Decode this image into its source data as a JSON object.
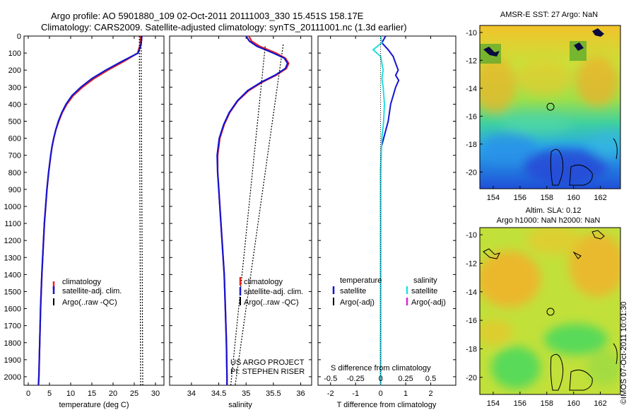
{
  "header": {
    "title_line1": "Argo profile: AO 5901880_109 02-Oct-2011 20111003_330 15.451S 158.17E",
    "title_line2": "Climatology: CARS2009. Satellite-adjusted climatology: synTS_20111001.nc (1.3d earlier)"
  },
  "stamp": "©IMOS 07-Oct-2011 10:01:30",
  "colors": {
    "climatology": "#e8231e",
    "satellite": "#1515d0",
    "argo": "#000000",
    "satellite_salt": "#22e0e0",
    "argo_salt": "#e020e0"
  },
  "depth_axis": {
    "ylim": [
      0,
      2050
    ],
    "ticks": [
      0,
      100,
      200,
      300,
      400,
      500,
      600,
      700,
      800,
      900,
      1000,
      1100,
      1200,
      1300,
      1400,
      1500,
      1600,
      1700,
      1800,
      1900,
      2000
    ]
  },
  "chart_data": [
    {
      "type": "line",
      "id": "temperature",
      "xlabel": "temperature (deg C)",
      "xlim": [
        -1,
        32
      ],
      "xticks": [
        0,
        5,
        10,
        15,
        20,
        25,
        30
      ],
      "legend": {
        "position": "lower-center",
        "entries": [
          "climatology",
          "satellite-adj. clim.",
          "Argo(..raw -QC)"
        ]
      },
      "series": [
        {
          "name": "climatology",
          "depth": [
            0,
            50,
            100,
            150,
            200,
            250,
            300,
            350,
            400,
            450,
            500,
            550,
            600,
            650,
            700,
            800,
            900,
            1000,
            1100,
            1200,
            1400,
            1600,
            1800,
            2000,
            2050
          ],
          "values": [
            26.5,
            26.4,
            25.8,
            22.5,
            18.8,
            15.5,
            12.8,
            10.6,
            9.1,
            8.0,
            7.2,
            6.5,
            6.0,
            5.6,
            5.3,
            4.8,
            4.4,
            4.1,
            3.8,
            3.6,
            3.2,
            2.9,
            2.7,
            2.5,
            2.4
          ]
        },
        {
          "name": "satellite",
          "depth": [
            0,
            50,
            100,
            150,
            200,
            250,
            300,
            350,
            400,
            450,
            500,
            550,
            600,
            650,
            700,
            800,
            900,
            1000,
            1100,
            1200,
            1400,
            1600,
            1800,
            2000,
            2050
          ],
          "values": [
            26.8,
            26.6,
            25.9,
            22.0,
            18.3,
            15.0,
            12.4,
            10.3,
            8.9,
            7.9,
            7.1,
            6.5,
            6.0,
            5.6,
            5.3,
            4.8,
            4.4,
            4.1,
            3.8,
            3.6,
            3.2,
            2.9,
            2.7,
            2.5,
            2.4
          ]
        },
        {
          "name": "argo_upper",
          "depth": [
            0,
            2050
          ],
          "values": [
            26.6,
            27.0
          ]
        },
        {
          "name": "argo_lower",
          "depth": [
            0,
            2050
          ],
          "values": [
            26.2,
            26.5
          ]
        }
      ]
    },
    {
      "type": "line",
      "id": "salinity",
      "xlabel": "salinity",
      "xlim": [
        33.6,
        36.2
      ],
      "xticks": [
        34,
        34.5,
        35,
        35.5,
        36
      ],
      "legend": {
        "position": "lower-right",
        "entries": [
          "climatology",
          "satellite-adj. clim.",
          "Argo(..raw -QC)"
        ]
      },
      "annotations": [
        "US ARGO PROJECT",
        "PI: STEPHEN RISER"
      ],
      "series": [
        {
          "name": "climatology",
          "depth": [
            0,
            30,
            60,
            100,
            130,
            160,
            190,
            230,
            270,
            320,
            380,
            450,
            520,
            600,
            700,
            800,
            900,
            1000,
            1200,
            1400,
            1600,
            1800,
            2000,
            2050
          ],
          "values": [
            35.05,
            35.1,
            35.25,
            35.55,
            35.72,
            35.78,
            35.74,
            35.55,
            35.3,
            35.05,
            34.85,
            34.7,
            34.6,
            34.52,
            34.48,
            34.48,
            34.5,
            34.52,
            34.56,
            34.6,
            34.62,
            34.64,
            34.65,
            34.65
          ]
        },
        {
          "name": "satellite",
          "depth": [
            0,
            30,
            60,
            100,
            130,
            160,
            190,
            230,
            270,
            320,
            380,
            450,
            520,
            600,
            700,
            800,
            900,
            1000,
            1200,
            1400,
            1600,
            1800,
            2000,
            2050
          ],
          "values": [
            35.0,
            35.06,
            35.2,
            35.5,
            35.7,
            35.76,
            35.72,
            35.53,
            35.28,
            35.03,
            34.84,
            34.69,
            34.59,
            34.51,
            34.47,
            34.48,
            34.5,
            34.52,
            34.56,
            34.6,
            34.62,
            34.64,
            34.65,
            34.65
          ]
        },
        {
          "name": "argo_a",
          "depth": [
            60,
            2050
          ],
          "values": [
            35.35,
            34.72
          ]
        },
        {
          "name": "argo_b",
          "depth": [
            50,
            2050
          ],
          "values": [
            35.68,
            34.8
          ]
        }
      ]
    },
    {
      "type": "line",
      "id": "difference",
      "xlabel": "T difference from climatology",
      "xlabel_top": "S difference from climatology",
      "xlim": [
        -2.5,
        3
      ],
      "xticks": [
        -2,
        -1,
        0,
        1,
        2
      ],
      "xticks_top": [
        "-0.5",
        "-0.25",
        "0",
        "0.25",
        "0.5"
      ],
      "legend": {
        "position": "lower-center",
        "headers": [
          "temperature",
          "salinity"
        ],
        "entries": [
          "satellite",
          "Argo(-adj)",
          "satellite",
          "Argo(-adj)"
        ]
      },
      "series": [
        {
          "name": "temperature satellite",
          "depth": [
            0,
            40,
            80,
            120,
            160,
            200,
            230,
            260,
            300,
            350,
            400,
            500,
            600,
            650,
            700,
            800,
            1000,
            1500,
            2050
          ],
          "values": [
            0.2,
            0.05,
            0.3,
            0.5,
            0.6,
            0.7,
            0.6,
            0.72,
            0.6,
            0.5,
            0.4,
            0.3,
            0.12,
            0.03,
            0.02,
            0.0,
            0.0,
            0.0,
            0.0
          ]
        },
        {
          "name": "salinity satellite",
          "depth": [
            0,
            40,
            80,
            120,
            160,
            200,
            250,
            300,
            400,
            500,
            600,
            700,
            800,
            1000,
            1500,
            2050
          ],
          "values": [
            0.0,
            0.05,
            -0.3,
            0.0,
            0.05,
            0.1,
            0.05,
            0.1,
            0.15,
            0.12,
            0.05,
            0.02,
            0.0,
            0.0,
            0.0,
            0.0
          ]
        },
        {
          "name": "zero reference",
          "depth": [
            0,
            2050
          ],
          "values": [
            0,
            0
          ]
        }
      ]
    },
    {
      "type": "heatmap",
      "id": "sst-map",
      "title": "AMSR-E SST: 27 Argo: NaN",
      "xticks": [
        "154",
        "156",
        "158",
        "160",
        "162"
      ],
      "yticks": [
        "-10",
        "-12",
        "-14",
        "-16",
        "-18",
        "-20"
      ],
      "xlim": [
        153,
        163.5
      ],
      "ylim": [
        -21.2,
        -9.5
      ],
      "marker": {
        "lon": 158.17,
        "lat": -15.45
      }
    },
    {
      "type": "heatmap",
      "id": "sla-map",
      "title_line1": "Altim. SLA: 0.12",
      "title_line2": "Argo h1000: NaN h2000: NaN",
      "xticks": [
        "154",
        "156",
        "158",
        "160",
        "162"
      ],
      "yticks": [
        "-10",
        "-12",
        "-14",
        "-16",
        "-18",
        "-20"
      ],
      "xlim": [
        153,
        163.5
      ],
      "ylim": [
        -21.2,
        -9.5
      ],
      "marker": {
        "lon": 158.17,
        "lat": -15.45
      }
    }
  ]
}
